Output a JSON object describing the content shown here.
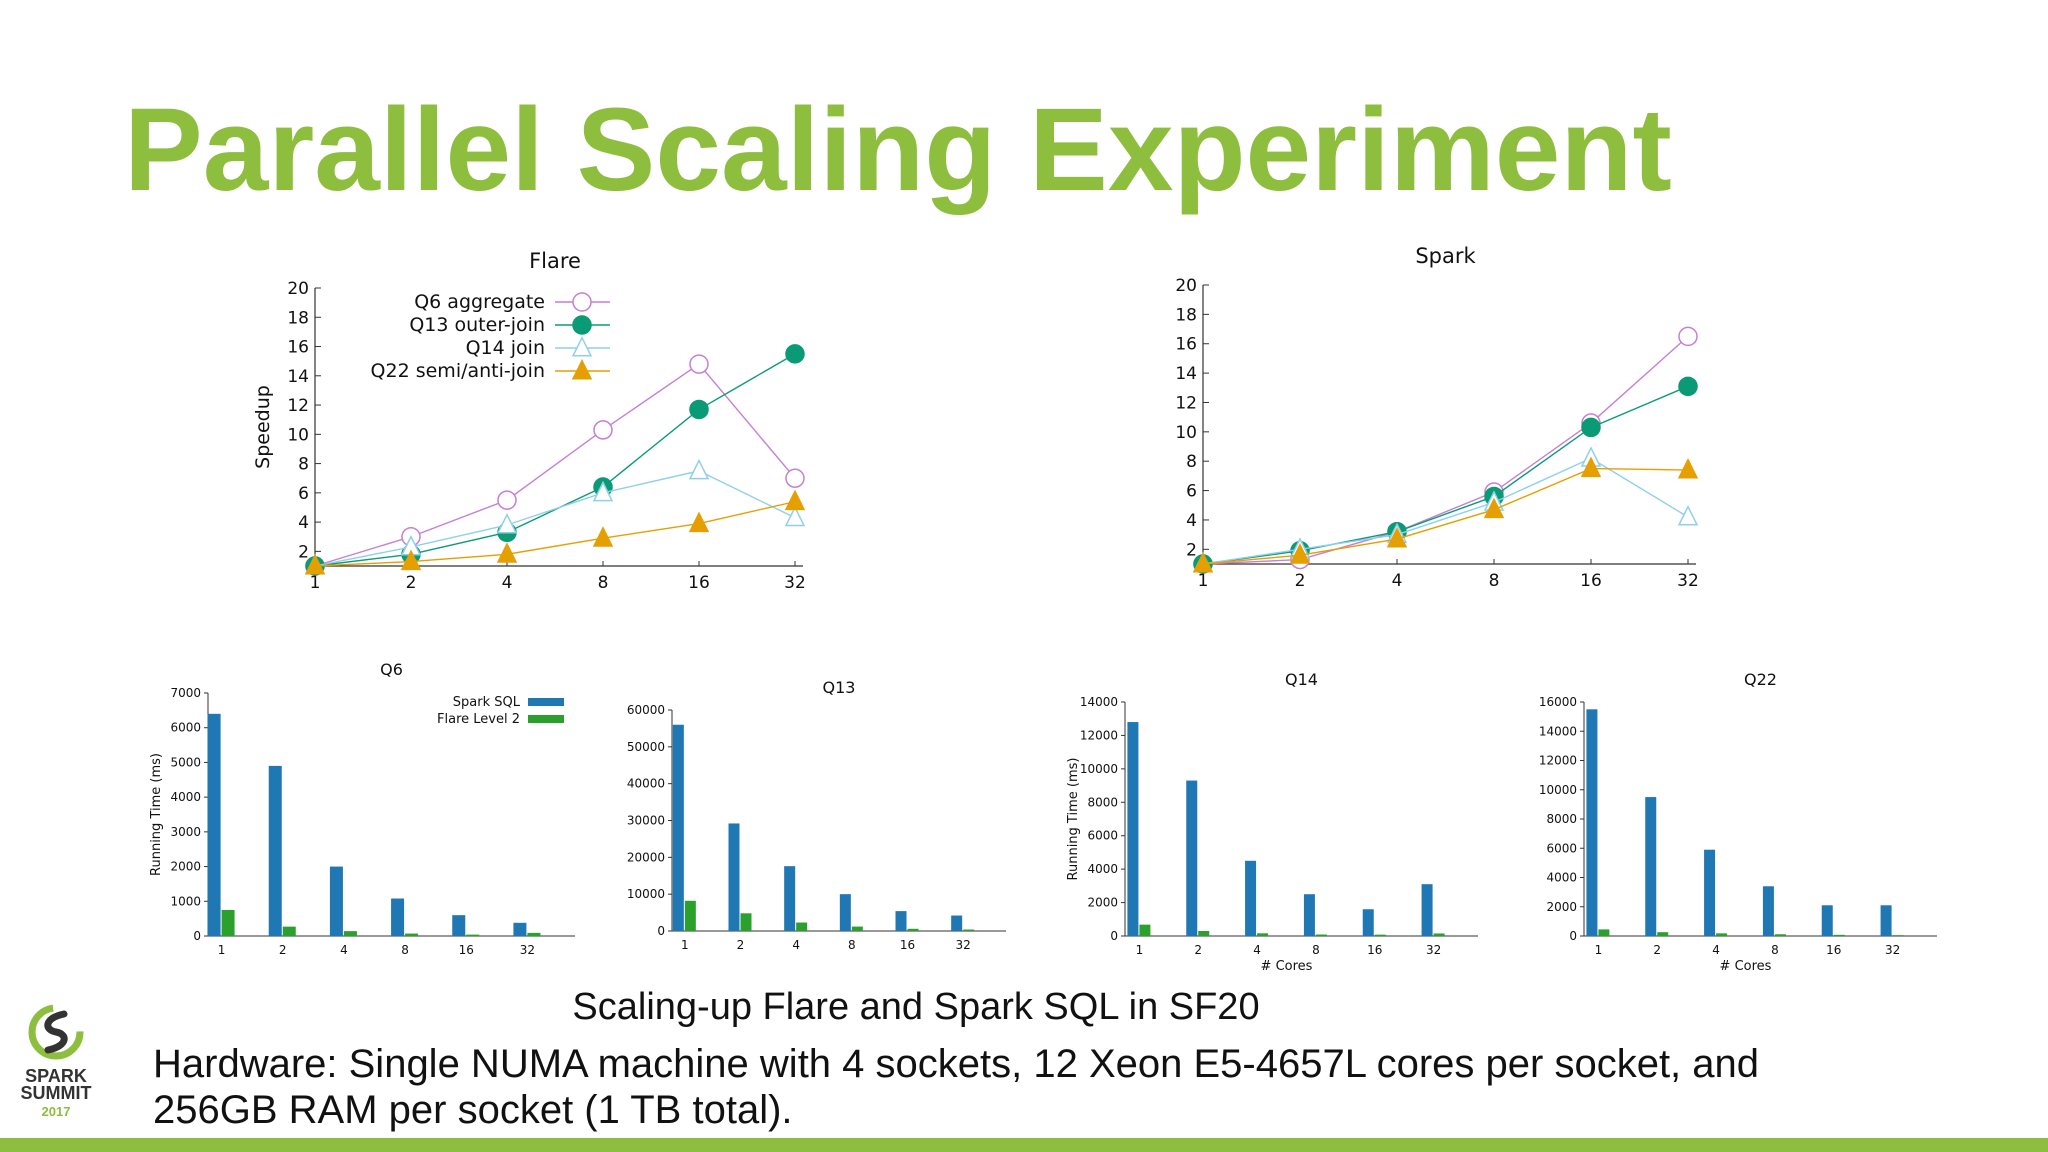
{
  "slide": {
    "title": "Parallel Scaling Experiment",
    "caption": "Scaling-up Flare and Spark SQL in SF20",
    "hardware": "Hardware: Single NUMA machine with 4 sockets, 12 Xeon E5-4657L cores per socket, and 256GB RAM per socket (1 TB total).",
    "logo": {
      "name": "SPARK SUMMIT",
      "year": "2017"
    },
    "accent_color": "#8dbe3d"
  },
  "series_styles": {
    "Q6 aggregate": {
      "color": "#c57fd3",
      "marker": "circle-open"
    },
    "Q13 outer-join": {
      "color": "#0a9b76",
      "marker": "circle-filled"
    },
    "Q14 join": {
      "color": "#8fd0e8",
      "marker": "triangle-open"
    },
    "Q22 semi/anti-join": {
      "color": "#e69f00",
      "marker": "triangle-filled"
    },
    "Spark SQL": {
      "color": "#1f77b4"
    },
    "Flare Level 2": {
      "color": "#2ca02c"
    }
  },
  "chart_data": [
    {
      "id": "flare",
      "type": "line",
      "title": "Flare",
      "xlabel": "",
      "ylabel": "Speedup",
      "categories": [
        "1",
        "2",
        "4",
        "8",
        "16",
        "32"
      ],
      "ylim": [
        1,
        20
      ],
      "yticks": [
        2,
        4,
        6,
        8,
        10,
        12,
        14,
        16,
        18,
        20
      ],
      "legend": "top-left",
      "grid": false,
      "series": [
        {
          "name": "Q6 aggregate",
          "values": [
            1,
            3,
            5.5,
            10.3,
            14.8,
            7
          ]
        },
        {
          "name": "Q13 outer-join",
          "values": [
            1,
            1.8,
            3.3,
            6.4,
            11.7,
            15.5
          ]
        },
        {
          "name": "Q14 join",
          "values": [
            1,
            2.3,
            3.8,
            6,
            7.5,
            4.3
          ]
        },
        {
          "name": "Q22 semi/anti-join",
          "values": [
            1,
            1.3,
            1.8,
            2.9,
            3.9,
            5.4
          ]
        }
      ]
    },
    {
      "id": "spark",
      "type": "line",
      "title": "Spark",
      "xlabel": "",
      "ylabel": "",
      "categories": [
        "1",
        "2",
        "4",
        "8",
        "16",
        "32"
      ],
      "ylim": [
        1,
        20
      ],
      "yticks": [
        2,
        4,
        6,
        8,
        10,
        12,
        14,
        16,
        18,
        20
      ],
      "legend": "none",
      "grid": false,
      "series": [
        {
          "name": "Q6 aggregate",
          "values": [
            1,
            1.3,
            3.2,
            5.9,
            10.6,
            16.5
          ]
        },
        {
          "name": "Q13 outer-join",
          "values": [
            1,
            1.9,
            3.2,
            5.6,
            10.3,
            13.1
          ]
        },
        {
          "name": "Q14 join",
          "values": [
            1,
            2,
            3,
            5.2,
            8.2,
            4.2
          ]
        },
        {
          "name": "Q22 semi/anti-join",
          "values": [
            1,
            1.6,
            2.7,
            4.7,
            7.5,
            7.4
          ]
        }
      ]
    },
    {
      "id": "q6",
      "type": "bar",
      "title": "Q6",
      "xlabel": "",
      "ylabel": "Running Time (ms)",
      "categories": [
        "1",
        "2",
        "4",
        "8",
        "16",
        "32"
      ],
      "ylim": [
        0,
        7000
      ],
      "yticks": [
        0,
        1000,
        2000,
        3000,
        4000,
        5000,
        6000,
        7000
      ],
      "legend": "top-right",
      "series": [
        {
          "name": "Spark SQL",
          "values": [
            6400,
            4900,
            2000,
            1080,
            600,
            380
          ]
        },
        {
          "name": "Flare Level 2",
          "values": [
            750,
            270,
            140,
            70,
            40,
            90
          ]
        }
      ]
    },
    {
      "id": "q13",
      "type": "bar",
      "title": "Q13",
      "xlabel": "",
      "ylabel": "",
      "categories": [
        "1",
        "2",
        "4",
        "8",
        "16",
        "32"
      ],
      "ylim": [
        0,
        60000
      ],
      "yticks": [
        0,
        10000,
        20000,
        30000,
        40000,
        50000,
        60000
      ],
      "legend": "none",
      "series": [
        {
          "name": "Spark SQL",
          "values": [
            56000,
            29200,
            17600,
            10000,
            5400,
            4200
          ]
        },
        {
          "name": "Flare Level 2",
          "values": [
            8200,
            4800,
            2300,
            1200,
            600,
            400
          ]
        }
      ]
    },
    {
      "id": "q14",
      "type": "bar",
      "title": "Q14",
      "xlabel": "# Cores",
      "ylabel": "Running Time (ms)",
      "categories": [
        "1",
        "2",
        "4",
        "8",
        "16",
        "32"
      ],
      "ylim": [
        0,
        14000
      ],
      "yticks": [
        0,
        2000,
        4000,
        6000,
        8000,
        10000,
        12000,
        14000
      ],
      "legend": "none",
      "series": [
        {
          "name": "Spark SQL",
          "values": [
            12800,
            9300,
            4500,
            2500,
            1600,
            3100
          ]
        },
        {
          "name": "Flare Level 2",
          "values": [
            680,
            300,
            160,
            90,
            80,
            150
          ]
        }
      ]
    },
    {
      "id": "q22",
      "type": "bar",
      "title": "Q22",
      "xlabel": "# Cores",
      "ylabel": "",
      "categories": [
        "1",
        "2",
        "4",
        "8",
        "16",
        "32"
      ],
      "ylim": [
        0,
        16000
      ],
      "yticks": [
        0,
        2000,
        4000,
        6000,
        8000,
        10000,
        12000,
        14000,
        16000
      ],
      "legend": "none",
      "series": [
        {
          "name": "Spark SQL",
          "values": [
            15500,
            9500,
            5900,
            3400,
            2100,
            2100
          ]
        },
        {
          "name": "Flare Level 2",
          "values": [
            450,
            260,
            180,
            120,
            80,
            60
          ]
        }
      ]
    }
  ]
}
